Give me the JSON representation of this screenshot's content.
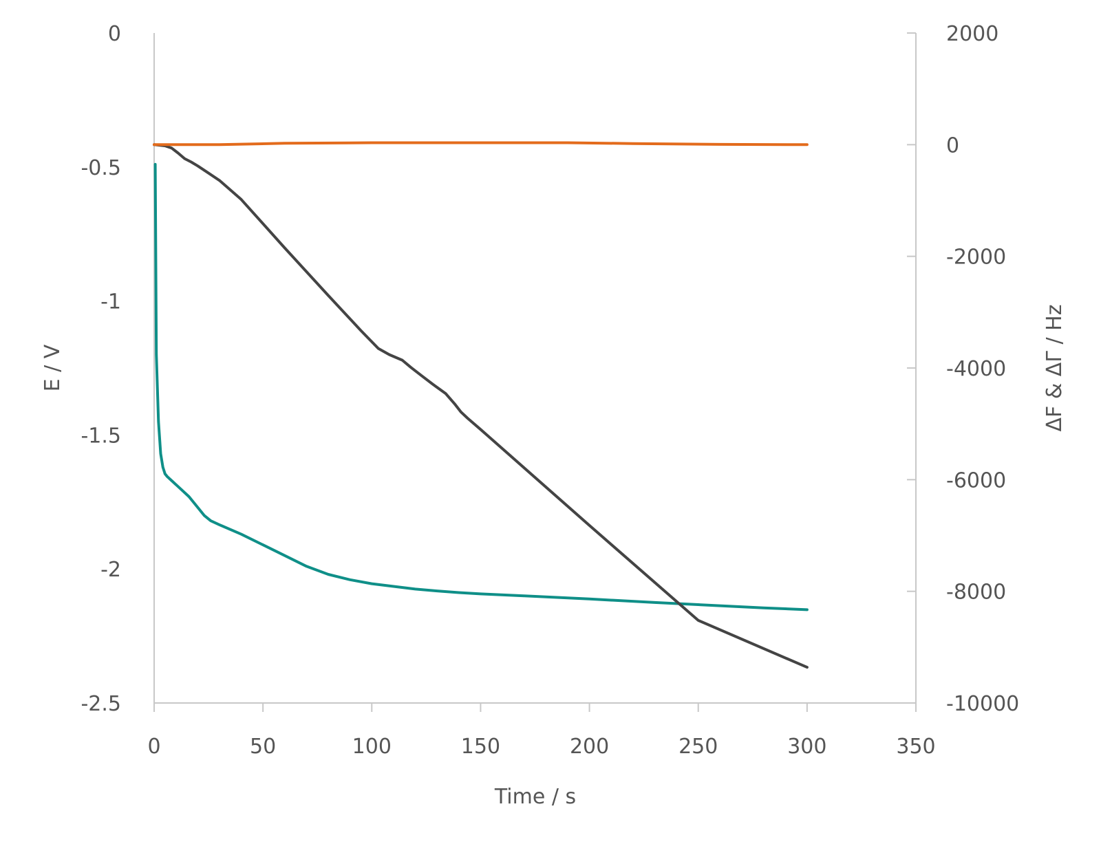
{
  "chart_data": {
    "type": "line",
    "xlabel": "Time / s",
    "ylabel_left": "E / V",
    "ylabel_right": "ΔF & ΔΓ / Hz",
    "xlim": [
      0,
      350
    ],
    "ylim_left": [
      -2.5,
      0
    ],
    "ylim_right": [
      -10000,
      2000
    ],
    "x_ticks": [
      0,
      50,
      100,
      150,
      200,
      250,
      300,
      350
    ],
    "y_left_ticks": [
      0,
      -0.5,
      -1,
      -1.5,
      -2,
      -2.5
    ],
    "y_right_ticks": [
      2000,
      0,
      -2000,
      -4000,
      -6000,
      -8000,
      -10000
    ],
    "legend": "none",
    "grid": false,
    "series": [
      {
        "axis": "left",
        "color": "#0f8f88",
        "x": [
          0.5,
          1,
          2,
          3,
          4,
          5,
          6,
          8,
          12,
          16,
          20,
          23,
          26,
          30,
          40,
          50,
          60,
          70,
          80,
          90,
          100,
          110,
          120,
          130,
          140,
          150,
          170,
          200,
          230,
          260,
          280,
          300
        ],
        "y": [
          -0.49,
          -1.2,
          -1.45,
          -1.57,
          -1.62,
          -1.645,
          -1.655,
          -1.67,
          -1.7,
          -1.73,
          -1.77,
          -1.8,
          -1.82,
          -1.835,
          -1.87,
          -1.91,
          -1.95,
          -1.99,
          -2.02,
          -2.04,
          -2.055,
          -2.065,
          -2.075,
          -2.082,
          -2.088,
          -2.093,
          -2.1,
          -2.112,
          -2.125,
          -2.137,
          -2.145,
          -2.152
        ]
      },
      {
        "axis": "right",
        "color": "#444444",
        "x": [
          0,
          5,
          8,
          11,
          14,
          17,
          20,
          25,
          30,
          40,
          60,
          80,
          95,
          103,
          108,
          114,
          118,
          123,
          128,
          134,
          138,
          141,
          144,
          150,
          200,
          250,
          300
        ],
        "y": [
          0,
          -20,
          -60,
          -150,
          -250,
          -310,
          -380,
          -510,
          -640,
          -980,
          -1850,
          -2700,
          -3330,
          -3650,
          -3760,
          -3860,
          -3990,
          -4140,
          -4290,
          -4460,
          -4640,
          -4790,
          -4900,
          -5100,
          -6820,
          -8520,
          -9360
        ]
      },
      {
        "axis": "right",
        "color": "#e36b1c",
        "x": [
          0,
          30,
          60,
          100,
          150,
          190,
          220,
          260,
          300
        ],
        "y": [
          0,
          0,
          25,
          35,
          35,
          35,
          20,
          5,
          0
        ]
      }
    ]
  }
}
